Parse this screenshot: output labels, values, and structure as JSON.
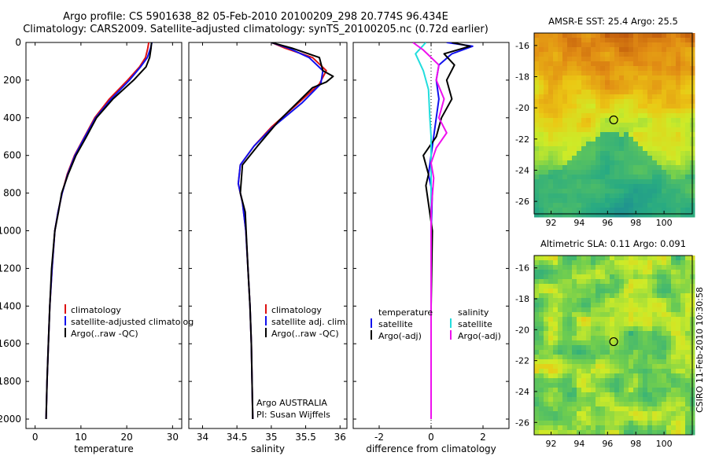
{
  "header": {
    "line1": "Argo profile: CS 5901638_82 05-Feb-2010 20100209_298 20.774S 96.434E",
    "line2": "Climatology: CARS2009. Satellite-adjusted climatology: synTS_20100205.nc (0.72d earlier)"
  },
  "side_label": "CSIRO 11-Feb-2010 10:30:58",
  "colors": {
    "climatology": "#dd1111",
    "satellite": "#1111ee",
    "argo": "#000000",
    "cyan": "#22dddd",
    "magenta": "#ee11ee"
  },
  "chart_data": [
    {
      "type": "line",
      "id": "temperature",
      "xlabel": "temperature",
      "ylabel": "",
      "xlim": [
        -2,
        32
      ],
      "ylim": [
        2050,
        0
      ],
      "y_reversed": true,
      "xticks": [
        0,
        10,
        20,
        30
      ],
      "yticks": [
        0,
        200,
        400,
        600,
        800,
        1000,
        1200,
        1400,
        1600,
        1800,
        2000
      ],
      "legend": [
        "climatology",
        "satellite-adjusted climatolog",
        "Argo(..raw -QC)"
      ],
      "legend_position": "lower-right",
      "series": [
        {
          "name": "climatology",
          "color": "climatology",
          "x": [
            24.8,
            24.6,
            24.1,
            22.8,
            20.2,
            16.2,
            13.0,
            10.8,
            8.6,
            7.0,
            5.9,
            5.0,
            4.3,
            3.7,
            3.2,
            2.9,
            2.6,
            2.4
          ],
          "y": [
            0,
            30,
            80,
            130,
            200,
            300,
            400,
            500,
            600,
            700,
            800,
            900,
            1000,
            1200,
            1400,
            1600,
            1800,
            2000
          ]
        },
        {
          "name": "satellite-adjusted climatolog",
          "color": "satellite",
          "x": [
            25.5,
            25.2,
            24.5,
            23.0,
            20.6,
            16.6,
            13.2,
            10.9,
            8.7,
            7.1,
            5.9,
            5.0,
            4.3,
            3.7,
            3.2,
            2.9,
            2.6,
            2.4
          ],
          "y": [
            0,
            30,
            80,
            130,
            200,
            300,
            400,
            500,
            600,
            700,
            800,
            900,
            1000,
            1200,
            1400,
            1600,
            1800,
            2000
          ]
        },
        {
          "name": "Argo(..raw -QC)",
          "color": "argo",
          "x": [
            25.4,
            25.3,
            25.0,
            24.2,
            21.5,
            17.0,
            13.4,
            11.2,
            8.9,
            7.2,
            5.8,
            5.1,
            4.3,
            3.6,
            3.2,
            2.9,
            2.6,
            2.4
          ],
          "y": [
            0,
            30,
            80,
            130,
            200,
            300,
            400,
            500,
            600,
            700,
            800,
            900,
            1000,
            1200,
            1400,
            1600,
            1800,
            2000
          ]
        }
      ]
    },
    {
      "type": "line",
      "id": "salinity",
      "xlabel": "salinity",
      "ylabel": "",
      "xlim": [
        33.8,
        36.1
      ],
      "ylim": [
        2050,
        0
      ],
      "y_reversed": true,
      "xticks": [
        34,
        34.5,
        35,
        35.5,
        36
      ],
      "legend": [
        "climatology",
        "satellite adj. clim.",
        "Argo(..raw -QC)"
      ],
      "legend_position": "lower-right",
      "annotations": [
        "Argo AUSTRALIA",
        "PI: Susan Wijffels"
      ],
      "series": [
        {
          "name": "climatology",
          "color": "climatology",
          "x": [
            35.0,
            35.2,
            35.6,
            35.8,
            35.7,
            35.4,
            35.0,
            34.75,
            34.55,
            34.52,
            34.58,
            34.63,
            34.66,
            34.69,
            34.71,
            34.72,
            34.73
          ],
          "y": [
            0,
            30,
            80,
            150,
            220,
            320,
            450,
            550,
            650,
            750,
            850,
            1000,
            1200,
            1400,
            1600,
            1800,
            2000
          ]
        },
        {
          "name": "satellite adj. clim.",
          "color": "satellite",
          "x": [
            35.0,
            35.25,
            35.55,
            35.75,
            35.72,
            35.45,
            35.02,
            34.75,
            34.55,
            34.52,
            34.58,
            34.63,
            34.66,
            34.69,
            34.71,
            34.72,
            34.73
          ],
          "y": [
            0,
            30,
            80,
            150,
            220,
            320,
            450,
            550,
            650,
            750,
            850,
            1000,
            1200,
            1400,
            1600,
            1800,
            2000
          ]
        },
        {
          "name": "Argo(..raw -QC)",
          "color": "argo",
          "x": [
            35.0,
            35.3,
            35.7,
            35.75,
            35.9,
            35.8,
            35.6,
            35.1,
            34.8,
            34.58,
            34.55,
            34.62,
            34.66,
            34.69,
            34.71,
            34.72,
            34.73
          ],
          "y": [
            0,
            30,
            80,
            150,
            180,
            210,
            240,
            420,
            550,
            650,
            800,
            900,
            1200,
            1400,
            1600,
            1800,
            2000
          ]
        }
      ]
    },
    {
      "type": "line",
      "id": "difference",
      "xlabel": "difference from climatology",
      "ylabel": "",
      "xlim": [
        -3,
        3
      ],
      "ylim": [
        2050,
        0
      ],
      "y_reversed": true,
      "xticks": [
        -2,
        0,
        2
      ],
      "xtick_labels": [
        "-2",
        "0",
        "2"
      ],
      "legend_titles": [
        "temperature",
        "salinity"
      ],
      "legend": [
        "satellite",
        "Argo(-adj)",
        "satellite",
        "Argo(-adj)"
      ],
      "legend_position": "lower-right",
      "series": [
        {
          "name": "satellite",
          "group": "temperature",
          "color": "satellite",
          "x": [
            0.6,
            1.6,
            0.8,
            0.3,
            0.2,
            0.3,
            0.2,
            0.1,
            0.0,
            -0.1,
            0.05,
            0.0,
            0.0,
            0.0,
            0.0
          ],
          "y": [
            0,
            20,
            60,
            120,
            200,
            300,
            400,
            500,
            600,
            700,
            800,
            1000,
            1400,
            1800,
            2000
          ]
        },
        {
          "name": "Argo(-adj)",
          "group": "temperature",
          "color": "argo",
          "x": [
            0.8,
            1.5,
            0.5,
            0.9,
            0.6,
            0.8,
            0.4,
            0.2,
            -0.3,
            -0.1,
            -0.2,
            0.05,
            0.0,
            0.0,
            0.0
          ],
          "y": [
            0,
            20,
            60,
            120,
            200,
            300,
            400,
            500,
            600,
            700,
            760,
            1000,
            1400,
            1800,
            2000
          ]
        },
        {
          "name": "satellite",
          "group": "salinity",
          "color": "cyan",
          "x": [
            -0.2,
            -0.6,
            -0.3,
            -0.1,
            -0.05,
            0.0,
            0.0,
            0.0,
            0.0,
            0.0,
            0.0,
            0.0,
            0.0
          ],
          "y": [
            0,
            60,
            150,
            250,
            400,
            500,
            600,
            700,
            800,
            1000,
            1400,
            1800,
            2000
          ]
        },
        {
          "name": "Argo(-adj)",
          "group": "salinity",
          "color": "magenta",
          "x": [
            -0.7,
            -0.3,
            0.3,
            0.2,
            0.5,
            0.3,
            0.6,
            0.2,
            0.0,
            0.1,
            0.0,
            0.0,
            0.0,
            0.0
          ],
          "y": [
            0,
            40,
            120,
            200,
            300,
            400,
            480,
            560,
            640,
            720,
            900,
            1400,
            1800,
            2000
          ]
        }
      ]
    },
    {
      "type": "heatmap",
      "id": "sst",
      "title": "AMSR-E SST: 25.4 Argo: 25.5",
      "xlim": [
        90.8,
        102
      ],
      "ylim": [
        -26.8,
        -15.2
      ],
      "xticks": [
        92,
        94,
        96,
        98,
        100
      ],
      "yticks": [
        -16,
        -18,
        -20,
        -22,
        -24,
        -26
      ],
      "marker": {
        "x": 96.434,
        "y": -20.774
      }
    },
    {
      "type": "heatmap",
      "id": "sla",
      "title": "Altimetric SLA: 0.11 Argo: 0.091",
      "xlim": [
        90.8,
        102
      ],
      "ylim": [
        -26.8,
        -15.2
      ],
      "xticks": [
        92,
        94,
        96,
        98,
        100
      ],
      "yticks": [
        -16,
        -18,
        -20,
        -22,
        -24,
        -26
      ],
      "marker": {
        "x": 96.434,
        "y": -20.774
      }
    }
  ]
}
